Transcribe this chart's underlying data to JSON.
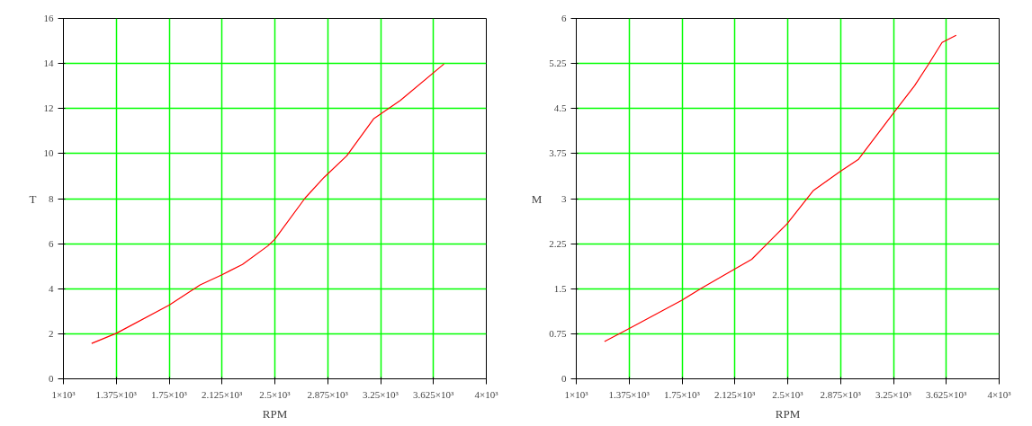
{
  "chart_data": [
    {
      "type": "line",
      "xlabel": "RPM",
      "ylabel": "T",
      "xlim": [
        1000,
        4000
      ],
      "ylim": [
        0,
        16
      ],
      "xticks": [
        {
          "value": 1000,
          "label": "1×10³"
        },
        {
          "value": 1375,
          "label": "1.375×10³"
        },
        {
          "value": 1750,
          "label": "1.75×10³"
        },
        {
          "value": 2125,
          "label": "2.125×10³"
        },
        {
          "value": 2500,
          "label": "2.5×10³"
        },
        {
          "value": 2875,
          "label": "2.875×10³"
        },
        {
          "value": 3250,
          "label": "3.25×10³"
        },
        {
          "value": 3625,
          "label": "3.625×10³"
        },
        {
          "value": 4000,
          "label": "4×10³"
        }
      ],
      "yticks": [
        0,
        2,
        4,
        6,
        8,
        10,
        12,
        14,
        16
      ],
      "grid": true,
      "x": [
        1200,
        1375,
        1750,
        1970,
        2125,
        2270,
        2450,
        2500,
        2715,
        2850,
        3010,
        3200,
        3390,
        3700
      ],
      "series": [
        {
          "color": "#ff0000",
          "values": [
            1.57,
            2.02,
            3.27,
            4.17,
            4.62,
            5.08,
            5.9,
            6.2,
            8.03,
            8.95,
            9.9,
            11.54,
            12.36,
            13.98
          ]
        }
      ]
    },
    {
      "type": "line",
      "xlabel": "RPM",
      "ylabel": "M",
      "xlim": [
        1000,
        4000
      ],
      "ylim": [
        0,
        6
      ],
      "xticks": [
        {
          "value": 1000,
          "label": "1×10³"
        },
        {
          "value": 1375,
          "label": "1.375×10³"
        },
        {
          "value": 1750,
          "label": "1.75×10³"
        },
        {
          "value": 2125,
          "label": "2.125×10³"
        },
        {
          "value": 2500,
          "label": "2.5×10³"
        },
        {
          "value": 2875,
          "label": "2.875×10³"
        },
        {
          "value": 3250,
          "label": "3.25×10³"
        },
        {
          "value": 3625,
          "label": "3.625×10³"
        },
        {
          "value": 4000,
          "label": "4×10³"
        }
      ],
      "yticks": [
        0,
        0.75,
        1.5,
        2.25,
        3,
        3.75,
        4.5,
        5.25,
        6
      ],
      "grid": true,
      "x": [
        1200,
        1370,
        1750,
        1890,
        2125,
        2245,
        2355,
        2495,
        2680,
        2870,
        3000,
        3245,
        3400,
        3500,
        3595,
        3695
      ],
      "series": [
        {
          "color": "#ff0000",
          "values": [
            0.62,
            0.83,
            1.31,
            1.51,
            1.83,
            1.99,
            2.25,
            2.58,
            3.13,
            3.45,
            3.65,
            4.41,
            4.88,
            5.24,
            5.6,
            5.72
          ]
        }
      ]
    }
  ]
}
